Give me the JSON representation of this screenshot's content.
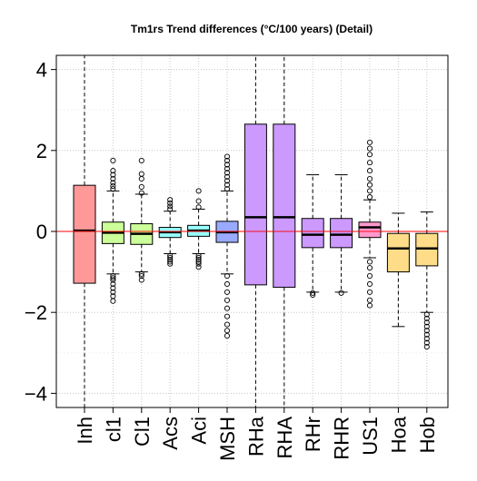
{
  "chart_data": {
    "type": "box",
    "title": "Tm1rs Trend differences (°C/100 years) (Detail)",
    "xlabel": "",
    "ylabel": "",
    "ylim": [
      -4.35,
      4.35
    ],
    "yticks": [
      -4,
      -2,
      0,
      2,
      4
    ],
    "yticklabels": [
      "−4",
      "−2",
      "0",
      "2",
      "4"
    ],
    "grid": true,
    "reference_line": {
      "y": 0,
      "color": "#ff0000"
    },
    "categories": [
      "Inh",
      "cl1",
      "Cl1",
      "Acs",
      "Aci",
      "MSH",
      "RHa",
      "RHA",
      "RHr",
      "RHR",
      "US1",
      "Hoa",
      "Hob"
    ],
    "boxes": [
      {
        "name": "Inh",
        "color": "#ff9999",
        "q1": -1.28,
        "median": 0.02,
        "q3": 1.14,
        "whisker_low": null,
        "whisker_high": null,
        "outliers": []
      },
      {
        "name": "cl1",
        "color": "#ccff99",
        "q1": -0.3,
        "median": -0.03,
        "q3": 0.23,
        "whisker_low": -1.05,
        "whisker_high": 1.0,
        "outliers": [
          1.05,
          1.12,
          1.2,
          1.3,
          1.4,
          1.5,
          1.75,
          -1.1,
          -1.15,
          -1.2,
          -1.3,
          -1.4,
          -1.5,
          -1.6,
          -1.72
        ]
      },
      {
        "name": "Cl1",
        "color": "#ccff99",
        "q1": -0.32,
        "median": -0.06,
        "q3": 0.19,
        "whisker_low": -1.0,
        "whisker_high": 0.92,
        "outliers": [
          0.95,
          1.1,
          1.3,
          1.42,
          1.75,
          -1.05,
          -1.1,
          -1.2
        ]
      },
      {
        "name": "Acs",
        "color": "#99ffff",
        "q1": -0.15,
        "median": -0.02,
        "q3": 0.1,
        "whisker_low": -0.55,
        "whisker_high": 0.5,
        "outliers": [
          0.55,
          0.62,
          0.7,
          0.78,
          -0.6,
          -0.65,
          -0.7,
          -0.75,
          -0.8
        ]
      },
      {
        "name": "Aci",
        "color": "#99ffff",
        "q1": -0.12,
        "median": 0.02,
        "q3": 0.15,
        "whisker_low": -0.55,
        "whisker_high": 0.55,
        "outliers": [
          0.6,
          0.75,
          1.0,
          -0.6,
          -0.65,
          -0.7,
          -0.75,
          -0.8,
          -0.88
        ]
      },
      {
        "name": "MSH",
        "color": "#99aaff",
        "q1": -0.27,
        "median": -0.02,
        "q3": 0.25,
        "whisker_low": -1.05,
        "whisker_high": 1.0,
        "outliers": [
          1.05,
          1.15,
          1.25,
          1.35,
          1.45,
          1.55,
          1.65,
          1.75,
          1.85,
          -1.1,
          -1.3,
          -1.5,
          -1.7,
          -1.9,
          -2.1,
          -2.3,
          -2.45,
          -2.58
        ]
      },
      {
        "name": "RHa",
        "color": "#cc99ff",
        "q1": -1.32,
        "median": 0.35,
        "q3": 2.65,
        "whisker_low": null,
        "whisker_high": null,
        "outliers": []
      },
      {
        "name": "RHA",
        "color": "#cc99ff",
        "q1": -1.38,
        "median": 0.35,
        "q3": 2.65,
        "whisker_low": null,
        "whisker_high": null,
        "outliers": []
      },
      {
        "name": "RHr",
        "color": "#cc99ff",
        "q1": -0.4,
        "median": -0.08,
        "q3": 0.32,
        "whisker_low": -1.5,
        "whisker_high": 1.4,
        "outliers": [
          -1.52,
          -1.57
        ]
      },
      {
        "name": "RHR",
        "color": "#cc99ff",
        "q1": -0.4,
        "median": -0.08,
        "q3": 0.32,
        "whisker_low": -1.5,
        "whisker_high": 1.4,
        "outliers": [
          -1.52
        ]
      },
      {
        "name": "US1",
        "color": "#ff99cc",
        "q1": -0.15,
        "median": 0.1,
        "q3": 0.23,
        "whisker_low": -0.65,
        "whisker_high": 0.78,
        "outliers": [
          0.85,
          1.0,
          1.15,
          1.3,
          1.5,
          1.7,
          1.9,
          2.05,
          2.2,
          -0.75,
          -0.9,
          -1.1,
          -1.3,
          -1.5,
          -1.7,
          -1.83
        ]
      },
      {
        "name": "Hoa",
        "color": "#ffdd88",
        "q1": -1.0,
        "median": -0.42,
        "q3": -0.05,
        "whisker_low": -2.35,
        "whisker_high": 0.45,
        "outliers": []
      },
      {
        "name": "Hob",
        "color": "#ffdd88",
        "q1": -0.85,
        "median": -0.42,
        "q3": -0.05,
        "whisker_low": -2.0,
        "whisker_high": 0.48,
        "outliers": [
          -2.05,
          -2.15,
          -2.25,
          -2.35,
          -2.45,
          -2.55,
          -2.65,
          -2.75,
          -2.85
        ]
      }
    ]
  }
}
